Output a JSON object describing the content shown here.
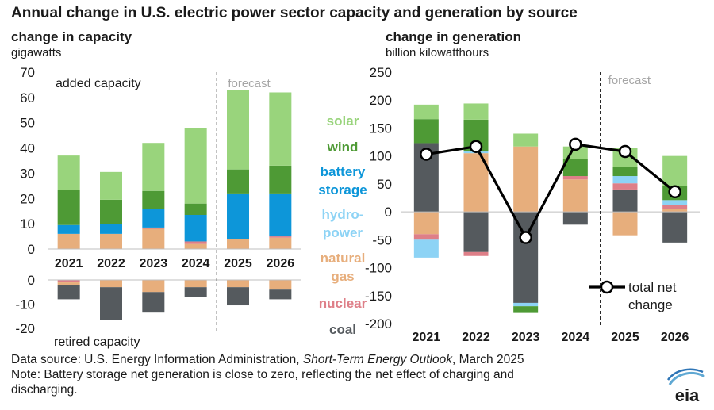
{
  "title": "Annual change in U.S. electric power sector capacity and generation by source",
  "source_line": {
    "prefix": "Data source: U.S. Energy Information Administration, ",
    "italic": "Short-Term Energy Outlook",
    "suffix": ", March 2025"
  },
  "note_line1": "Note: Battery storage net generation is close to zero, reflecting the net effect of charging and",
  "note_line2": "discharging.",
  "logo_text": "eia",
  "colors": {
    "solar": "#99d47c",
    "wind": "#4e9a35",
    "battery": "#0d96d9",
    "hydro": "#8dd3f5",
    "gas": "#e7ae7c",
    "nuclear": "#de7f88",
    "coal": "#555a5e",
    "line": "#000000"
  },
  "legend": [
    {
      "key": "solar",
      "label": "solar"
    },
    {
      "key": "wind",
      "label": "wind"
    },
    {
      "key": "battery",
      "label": "battery storage"
    },
    {
      "key": "hydro",
      "label": "hydro-power"
    },
    {
      "key": "gas",
      "label": "natural gas"
    },
    {
      "key": "nuclear",
      "label": "nuclear"
    },
    {
      "key": "coal",
      "label": "coal"
    }
  ],
  "chart_data": [
    {
      "type": "bar",
      "stacked": true,
      "title": "change in capacity",
      "ylabel": "gigawatts",
      "categories": [
        "2021",
        "2022",
        "2023",
        "2024",
        "2025",
        "2026"
      ],
      "forecast_label": "forecast",
      "forecast_start": "2025",
      "added": {
        "label": "added capacity",
        "ylim": [
          0,
          70
        ],
        "ticks": [
          0,
          10,
          20,
          30,
          40,
          50,
          60,
          70
        ],
        "series": [
          {
            "key": "gas",
            "values": [
              6,
              6,
              8,
              2,
              4,
              4.5
            ]
          },
          {
            "key": "nuclear",
            "values": [
              0,
              0,
              0.5,
              1,
              0,
              0.5
            ]
          },
          {
            "key": "battery",
            "values": [
              3.5,
              4,
              7.5,
              10.5,
              18,
              17
            ]
          },
          {
            "key": "wind",
            "values": [
              14,
              9.5,
              7,
              4.5,
              9.5,
              11
            ]
          },
          {
            "key": "solar",
            "values": [
              13.5,
              11,
              19,
              30,
              31.5,
              29
            ]
          }
        ]
      },
      "retired": {
        "label": "retired capacity",
        "ylim": [
          -20,
          0
        ],
        "ticks": [
          -20,
          -10,
          0
        ],
        "series": [
          {
            "key": "nuclear",
            "values": [
              -1,
              0,
              0,
              0,
              0,
              0
            ]
          },
          {
            "key": "gas",
            "values": [
              -1,
              -3,
              -5,
              -3,
              -3,
              -4
            ]
          },
          {
            "key": "coal",
            "values": [
              -6,
              -13.5,
              -8.5,
              -4,
              -7.5,
              -4
            ]
          }
        ]
      }
    },
    {
      "type": "bar",
      "stacked": true,
      "title": "change in generation",
      "ylabel": "billion  kilowatthours",
      "categories": [
        "2021",
        "2022",
        "2023",
        "2024",
        "2025",
        "2026"
      ],
      "forecast_label": "forecast",
      "forecast_start": "2025",
      "ylim": [
        -200,
        250
      ],
      "ticks": [
        -200,
        -150,
        -100,
        -50,
        0,
        50,
        100,
        150,
        200,
        250
      ],
      "series": [
        {
          "key": "coal",
          "values": [
            123,
            -72,
            -163,
            -23,
            40,
            -55
          ]
        },
        {
          "key": "gas",
          "values": [
            -40,
            105,
            117,
            58,
            -42,
            5
          ]
        },
        {
          "key": "nuclear",
          "values": [
            -10,
            -7,
            0,
            6,
            11,
            7
          ]
        },
        {
          "key": "hydro",
          "values": [
            -32,
            3,
            -6,
            0,
            13,
            9
          ]
        },
        {
          "key": "wind",
          "values": [
            43,
            57,
            -12,
            30,
            16,
            25
          ]
        },
        {
          "key": "solar",
          "values": [
            26,
            29,
            23,
            23,
            34,
            54
          ]
        }
      ],
      "line_series": {
        "name": "total net change",
        "values": [
          103,
          117,
          -46,
          121,
          108,
          36
        ]
      }
    }
  ]
}
